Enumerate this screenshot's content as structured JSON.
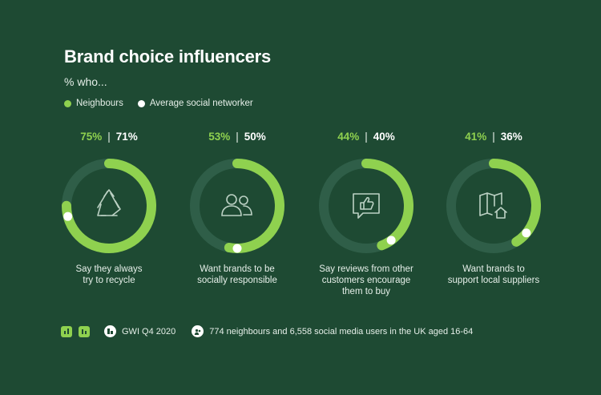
{
  "title": "Brand choice influencers",
  "subtitle": "% who...",
  "legend": [
    {
      "label": "Neighbours",
      "color": "#8fd14f"
    },
    {
      "label": "Average social networker",
      "color": "#ffffff"
    }
  ],
  "colors": {
    "background": "#1e4a33",
    "track": "#2f5e48",
    "neighbours": "#8fd14f",
    "average": "#ffffff"
  },
  "chart_data": {
    "type": "pie",
    "title": "Brand choice influencers",
    "subtitle": "% who...",
    "series": [
      {
        "name": "Neighbours",
        "values": [
          75,
          53,
          44,
          41
        ]
      },
      {
        "name": "Average social networker",
        "values": [
          71,
          50,
          40,
          36
        ]
      }
    ],
    "categories": [
      "Say they always try to recycle",
      "Want brands to be socially responsible",
      "Say reviews from other customers encourage them to buy",
      "Want brands to support local suppliers"
    ],
    "items": [
      {
        "neighbours_label": "75%",
        "average_label": "71%",
        "caption_lines": [
          "Say they always",
          "try to recycle"
        ],
        "icon": "recycle-icon"
      },
      {
        "neighbours_label": "53%",
        "average_label": "50%",
        "caption_lines": [
          "Want brands to be",
          "socially responsible"
        ],
        "icon": "people-icon"
      },
      {
        "neighbours_label": "44%",
        "average_label": "40%",
        "caption_lines": [
          "Say reviews from other",
          "customers encourage",
          "them to buy"
        ],
        "icon": "thumbs-up-review-icon"
      },
      {
        "neighbours_label": "41%",
        "average_label": "36%",
        "caption_lines": [
          "Want brands to",
          "support local suppliers"
        ],
        "icon": "map-home-icon"
      }
    ]
  },
  "footer": {
    "source": "GWI Q4 2020",
    "sample": "774 neighbours and 6,558 social media users in the UK aged 16-64",
    "icons": [
      "chart-badge-icon",
      "chart-badge-icon",
      "source-icon",
      "audience-icon"
    ]
  }
}
